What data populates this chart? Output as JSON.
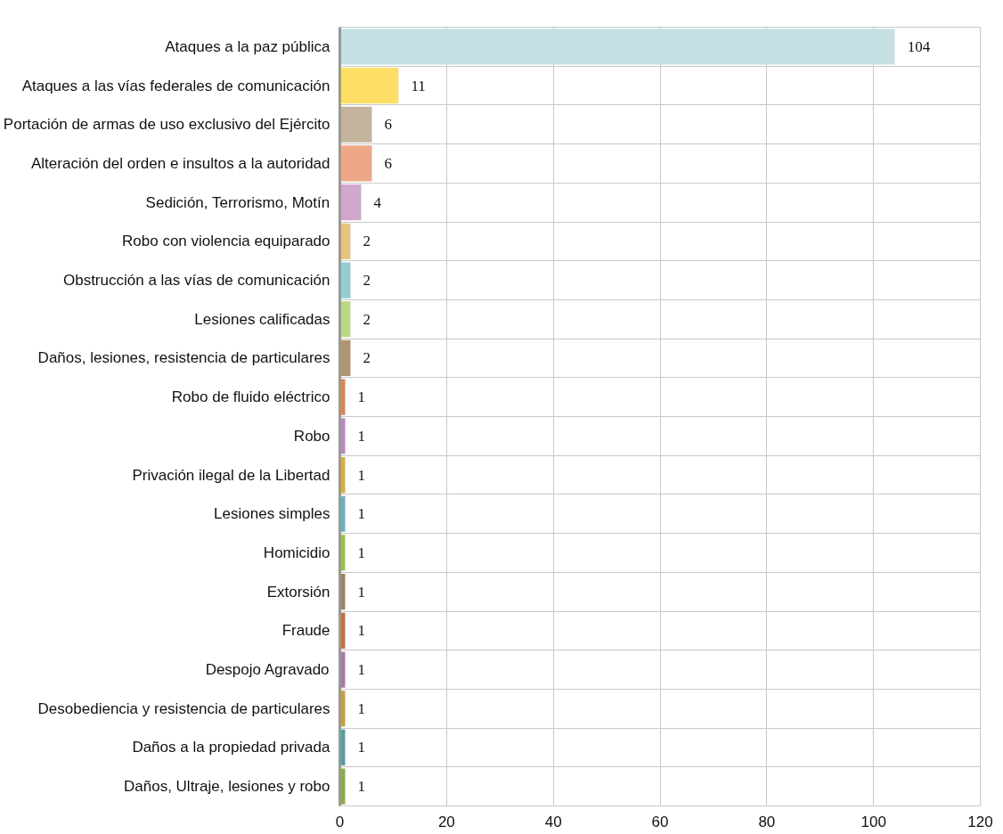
{
  "chart_data": {
    "type": "bar",
    "orientation": "horizontal",
    "categories": [
      "Ataques a la paz pública",
      "Ataques a las vías federales de comunicación",
      "Portación de armas de uso exclusivo del Ejército",
      "Alteración del orden e insultos a la autoridad",
      "Sedición, Terrorismo, Motín",
      "Robo con violencia equiparado",
      "Obstrucción a las vías de comunicación",
      "Lesiones calificadas",
      "Daños, lesiones, resistencia de particulares",
      "Robo de fluido eléctrico",
      "Robo",
      "Privación ilegal de la Libertad",
      "Lesiones simples",
      "Homicidio",
      "Extorsión",
      "Fraude",
      "Despojo Agravado",
      "Desobediencia y resistencia de particulares",
      "Daños a la propiedad privada",
      "Daños, Ultraje, lesiones y robo"
    ],
    "values": [
      104,
      11,
      6,
      6,
      4,
      2,
      2,
      2,
      2,
      1,
      1,
      1,
      1,
      1,
      1,
      1,
      1,
      1,
      1,
      1
    ],
    "colors": [
      "#c4e0e2",
      "#fddf66",
      "#c4b39c",
      "#eda888",
      "#d0a8cc",
      "#e8c47c",
      "#94ccd4",
      "#b8d884",
      "#b0966c",
      "#dc8448",
      "#bc88c0",
      "#dcb034",
      "#64b4c0",
      "#9cc444",
      "#9c8460",
      "#c8703c",
      "#a878a8",
      "#c8a034",
      "#50a0a8",
      "#8cac44"
    ],
    "xlim": [
      0,
      120
    ],
    "xticks": [
      0,
      20,
      40,
      60,
      80,
      100,
      120
    ],
    "grid": true,
    "data_labels": true
  }
}
